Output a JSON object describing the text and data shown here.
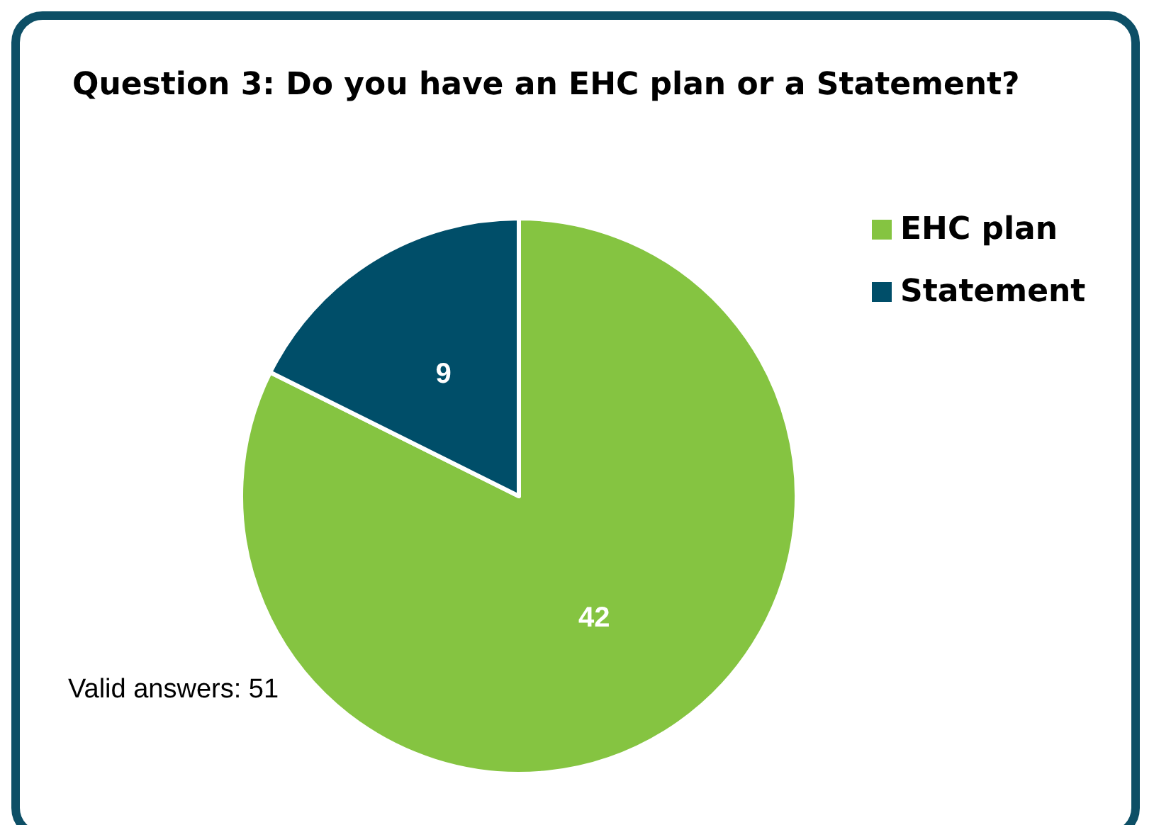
{
  "chart_data": {
    "type": "pie",
    "title": "Question 3: Do you have an EHC plan or a Statement?",
    "categories": [
      "EHC plan",
      "Statement"
    ],
    "values": [
      42,
      9
    ],
    "colors": [
      "#85c441",
      "#004e69"
    ],
    "data_labels": true,
    "legend": "top right",
    "annotations": [
      "Valid answers: 51"
    ]
  }
}
